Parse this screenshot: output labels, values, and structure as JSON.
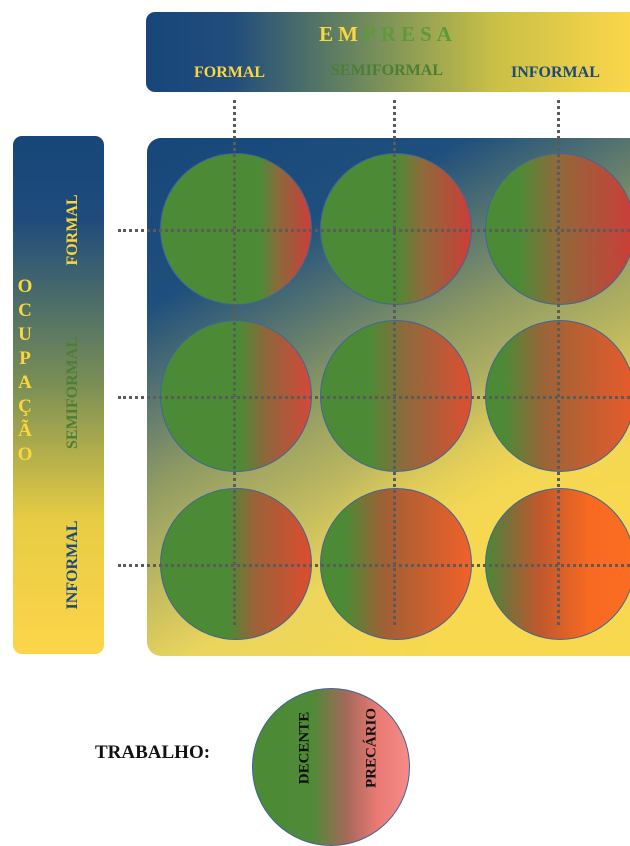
{
  "empresa": {
    "title_part1": "EM",
    "title_part2": "PRESA",
    "columns": [
      "FORMAL",
      "SEMIFORMAL",
      "INFORMAL"
    ]
  },
  "ocupacao": {
    "letters": [
      "O",
      "C",
      "U",
      "P",
      "A",
      "Ç",
      "Ã",
      "O"
    ],
    "rows": [
      "FORMAL",
      "SEMIFORMAL",
      "INFORMAL"
    ]
  },
  "legend": {
    "label": "TRABALHO:",
    "decent": "DECENTE",
    "precarious": "PRECÁRIO"
  },
  "colors": {
    "blue": "#17467a",
    "yellow": "#fcd63d",
    "green": "#4d8a36",
    "red": "#c9443a",
    "orange": "#f86a22"
  }
}
